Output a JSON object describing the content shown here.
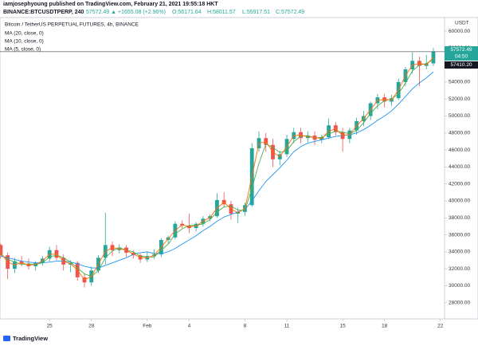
{
  "header": {
    "publisher": "iamjosephyoung published on TradingView.com, February 21, 2021 19:55:18 HKT",
    "symbol": "BINANCE:BTCUSDTPERP, 240",
    "change": "57572.49 ▲ +1655.08 (+2.96%)",
    "ohlc": [
      "O:56171.64",
      "H:58011.57",
      "L:55917.51",
      "C:57572.49"
    ]
  },
  "footer": {
    "brand": "TradingView"
  },
  "chart_data": {
    "type": "candlestick",
    "title": "Bitcoin / TetherUS PERPETUAL FUTURES, 4h, BINANCE",
    "y_axis_unit": "USDT",
    "up_color": "#26a69a",
    "down_color": "#ef5350",
    "grid": false,
    "open": [
      34800,
      33600,
      32000,
      32900,
      32600,
      32300,
      32700,
      33200,
      34200,
      33300,
      32500,
      32700,
      31000,
      30400,
      31800,
      33300,
      34800,
      34200,
      34500,
      33900,
      33600,
      33100,
      33500,
      33700,
      35400,
      35700,
      37300,
      37100,
      36800,
      37300,
      37900,
      38200,
      40100,
      39600,
      38500,
      38700,
      39500,
      46200,
      47400,
      46600,
      44900,
      45500,
      47300,
      48100,
      47400,
      47700,
      47200,
      47500,
      48900,
      48100,
      47300,
      48300,
      49400,
      50000,
      51500,
      52200,
      51700,
      52100,
      54000,
      55500,
      56500,
      55900,
      56200
    ],
    "high": [
      35000,
      33900,
      33300,
      33500,
      33200,
      32900,
      33500,
      34600,
      34800,
      33700,
      33000,
      32900,
      31500,
      32300,
      33600,
      38600,
      35200,
      34900,
      34800,
      34200,
      33800,
      34000,
      34300,
      35600,
      35900,
      37600,
      37700,
      38500,
      37500,
      38200,
      38400,
      40900,
      41000,
      40000,
      39200,
      39800,
      46800,
      48200,
      48000,
      47300,
      45900,
      47800,
      48600,
      48600,
      48200,
      48200,
      47800,
      49700,
      49300,
      48600,
      48600,
      49800,
      50600,
      51700,
      52600,
      52600,
      52500,
      54400,
      55800,
      57500,
      57000,
      57200,
      58000
    ],
    "low": [
      33200,
      30800,
      31500,
      32300,
      31900,
      31800,
      32400,
      32900,
      33000,
      31800,
      31600,
      30600,
      29800,
      30000,
      31500,
      32500,
      33500,
      33800,
      33400,
      33200,
      32700,
      32800,
      33200,
      33400,
      35000,
      35500,
      36800,
      36200,
      36400,
      37000,
      37600,
      38000,
      39200,
      37800,
      37400,
      38200,
      39300,
      45800,
      45800,
      44000,
      44200,
      45200,
      46800,
      46800,
      46900,
      46600,
      46800,
      47300,
      47700,
      45800,
      46800,
      47800,
      48800,
      49500,
      50800,
      51000,
      51200,
      51900,
      53500,
      55000,
      53500,
      55500,
      55900
    ],
    "close": [
      33600,
      32000,
      32900,
      32600,
      32300,
      32700,
      33200,
      34200,
      33300,
      32500,
      32700,
      31000,
      30400,
      31800,
      33300,
      34800,
      34200,
      34500,
      33900,
      33600,
      33100,
      33500,
      33700,
      35400,
      35700,
      37300,
      37100,
      36800,
      37300,
      37900,
      38200,
      40100,
      39600,
      38500,
      38700,
      39500,
      46200,
      47400,
      46600,
      44900,
      45500,
      47300,
      48100,
      47400,
      47700,
      47200,
      47500,
      48900,
      48100,
      47300,
      48300,
      49400,
      50000,
      51500,
      52200,
      51700,
      52100,
      54000,
      55500,
      56500,
      55900,
      56200,
      57572.49
    ],
    "series": [
      {
        "name": "MA (20, close, 0)",
        "color": "#2196f3",
        "values": [
          33500,
          33300,
          33100,
          32900,
          32800,
          32700,
          32700,
          32800,
          32900,
          32900,
          32800,
          32600,
          32300,
          32100,
          32100,
          32400,
          32700,
          33000,
          33300,
          33700,
          33900,
          34000,
          33800,
          33800,
          34000,
          34400,
          34900,
          35400,
          35900,
          36500,
          37000,
          37600,
          38100,
          38400,
          38700,
          39000,
          40000,
          41200,
          42300,
          43100,
          43900,
          44800,
          45800,
          46400,
          46800,
          47000,
          47200,
          47400,
          47600,
          47700,
          47800,
          48000,
          48400,
          48900,
          49500,
          50000,
          50600,
          51400,
          52300,
          53200,
          53900,
          54500,
          55200
        ]
      },
      {
        "name": "MA (10, close, 0)",
        "color": "#4caf50",
        "values": [
          33700,
          33100,
          32800,
          32500,
          32600,
          32500,
          32700,
          33400,
          33600,
          33300,
          32800,
          32100,
          31400,
          31100,
          31800,
          33300,
          34100,
          34500,
          34200,
          34000,
          33500,
          33400,
          33400,
          34200,
          34900,
          36100,
          36700,
          37100,
          37100,
          37300,
          37800,
          38700,
          39300,
          39400,
          38900,
          38900,
          41500,
          44400,
          46700,
          46300,
          45700,
          45900,
          47000,
          47600,
          47700,
          47400,
          47500,
          47900,
          48200,
          48100,
          47900,
          48300,
          49200,
          50300,
          51200,
          51800,
          52000,
          52600,
          53900,
          55300,
          56000,
          56200,
          56600
        ]
      },
      {
        "name": "MA (5, close, 0)",
        "color": "#ff6d00",
        "values": [
          33900,
          32800,
          32450,
          32750,
          32450,
          32500,
          32950,
          33700,
          33750,
          32900,
          32600,
          31850,
          30700,
          31100,
          32550,
          34050,
          34500,
          34350,
          34200,
          33750,
          33350,
          33300,
          33600,
          34550,
          35550,
          36500,
          37200,
          36950,
          37050,
          37600,
          38050,
          39150,
          39850,
          39050,
          38600,
          39100,
          42850,
          46800,
          47000,
          45750,
          45200,
          46400,
          47700,
          47750,
          47550,
          47450,
          47350,
          48200,
          48500,
          47700,
          47800,
          48850,
          49700,
          50750,
          51850,
          51950,
          51900,
          53050,
          54750,
          56000,
          56200,
          56050,
          56900
        ]
      }
    ],
    "last_price_label": "57572.49",
    "countdown_label": "04:50",
    "ma_price_label": "57410.20",
    "xlim": [
      -0.1,
      63.6
    ],
    "xticks": [
      {
        "value": 7,
        "label": "25"
      },
      {
        "value": 13,
        "label": "28"
      },
      {
        "value": 21,
        "label": "Feb"
      },
      {
        "value": 27,
        "label": "4"
      },
      {
        "value": 35,
        "label": "8"
      },
      {
        "value": 41,
        "label": "11"
      },
      {
        "value": 49,
        "label": "15"
      },
      {
        "value": 55,
        "label": "18"
      },
      {
        "value": 63,
        "label": "22"
      }
    ],
    "ylim": [
      26100,
      61600
    ],
    "yticks": [
      {
        "value": 28000,
        "label": "28000.00"
      },
      {
        "value": 30000,
        "label": "30000.00"
      },
      {
        "value": 32000,
        "label": "32000.00"
      },
      {
        "value": 34000,
        "label": "34000.00"
      },
      {
        "value": 36000,
        "label": "36000.00"
      },
      {
        "value": 38000,
        "label": "38000.00"
      },
      {
        "value": 40000,
        "label": "40000.00"
      },
      {
        "value": 42000,
        "label": "42000.00"
      },
      {
        "value": 44000,
        "label": "44000.00"
      },
      {
        "value": 46000,
        "label": "46000.00"
      },
      {
        "value": 48000,
        "label": "48000.00"
      },
      {
        "value": 50000,
        "label": "50000.00"
      },
      {
        "value": 52000,
        "label": "52000.00"
      },
      {
        "value": 54000,
        "label": "54000.00"
      },
      {
        "value": 56000,
        "label": "56000.00"
      },
      {
        "value": 58000,
        "label": "58000.00"
      },
      {
        "value": 60000,
        "label": "60000.00"
      }
    ]
  }
}
